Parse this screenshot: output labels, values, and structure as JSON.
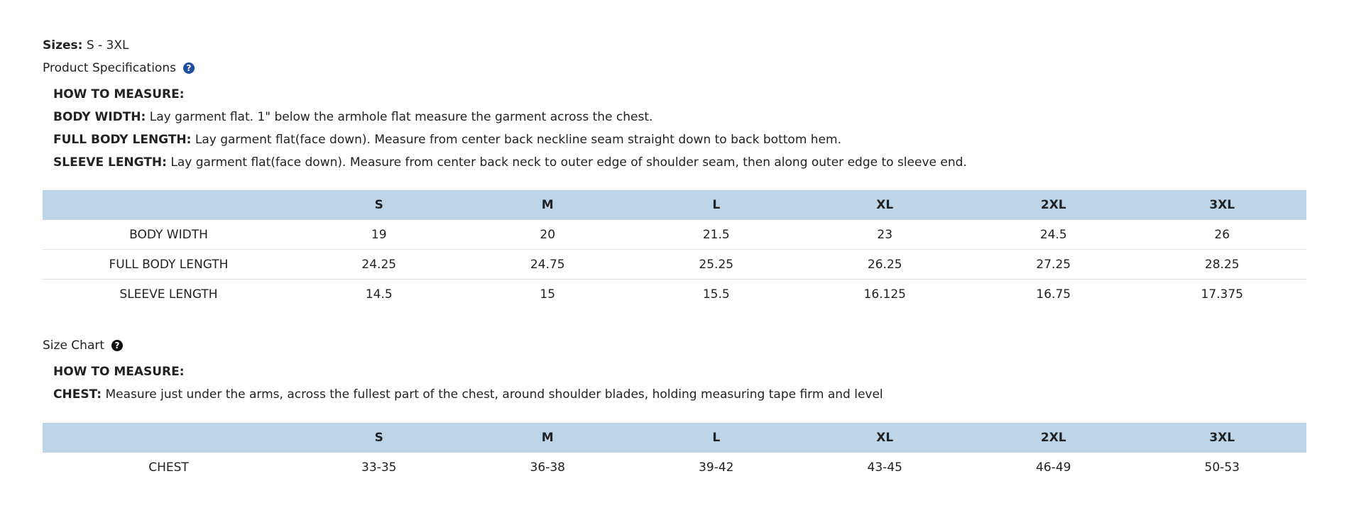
{
  "sizes": {
    "label": "Sizes:",
    "value": "S - 3XL"
  },
  "product_specs": {
    "title": "Product Specifications",
    "icon": "question-circle-icon",
    "icon_color": "#1f4fa0",
    "how_to_measure": "HOW TO MEASURE:",
    "instructions": [
      {
        "label": "BODY WIDTH:",
        "text": "Lay garment flat. 1\" below the armhole flat measure the garment across the chest."
      },
      {
        "label": "FULL BODY LENGTH:",
        "text": "Lay garment flat(face down). Measure from center back neckline seam straight down to back bottom hem."
      },
      {
        "label": "SLEEVE LENGTH:",
        "text": "Lay garment flat(face down). Measure from center back neck to outer edge of shoulder seam, then along outer edge to sleeve end."
      }
    ],
    "table": {
      "headers": [
        "",
        "S",
        "M",
        "L",
        "XL",
        "2XL",
        "3XL"
      ],
      "rows": [
        [
          "BODY WIDTH",
          "19",
          "20",
          "21.5",
          "23",
          "24.5",
          "26"
        ],
        [
          "FULL BODY LENGTH",
          "24.25",
          "24.75",
          "25.25",
          "26.25",
          "27.25",
          "28.25"
        ],
        [
          "SLEEVE LENGTH",
          "14.5",
          "15",
          "15.5",
          "16.125",
          "16.75",
          "17.375"
        ]
      ]
    }
  },
  "size_chart": {
    "title": "Size Chart",
    "icon": "question-circle-icon",
    "icon_color": "#111111",
    "how_to_measure": "HOW TO MEASURE:",
    "instructions": [
      {
        "label": "CHEST:",
        "text": "Measure just under the arms, across the fullest part of the chest, around shoulder blades, holding measuring tape firm and level"
      }
    ],
    "table": {
      "headers": [
        "",
        "S",
        "M",
        "L",
        "XL",
        "2XL",
        "3XL"
      ],
      "rows": [
        [
          "CHEST",
          "33-35",
          "36-38",
          "39-42",
          "43-45",
          "46-49",
          "50-53"
        ]
      ]
    }
  },
  "colors": {
    "header_bg": "#bcd5e8",
    "row_border": "#e2e2e2"
  }
}
